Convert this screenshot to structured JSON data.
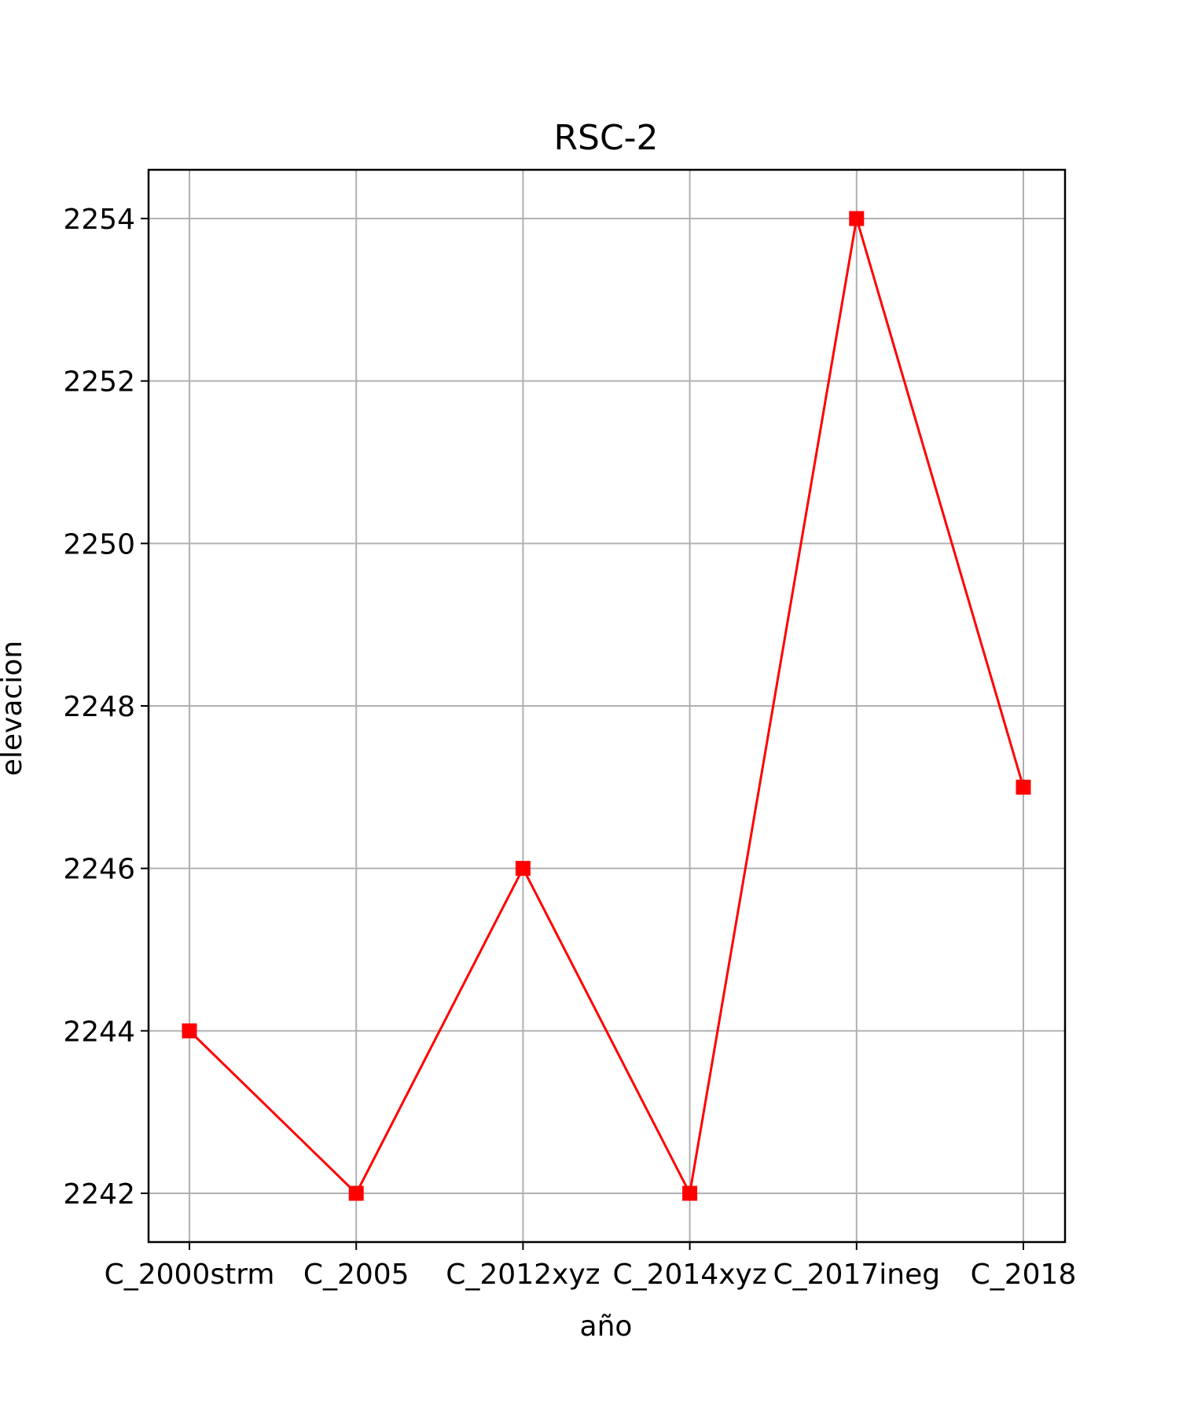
{
  "chart_data": {
    "type": "line",
    "title": "RSC-2",
    "xlabel": "año",
    "ylabel": "elevacion",
    "categories": [
      "C_2000strm",
      "C_2005",
      "C_2012xyz",
      "C_2014xyz",
      "C_2017ineg",
      "C_2018"
    ],
    "series": [
      {
        "values": [
          2244,
          2242,
          2246,
          2242,
          2254,
          2247
        ],
        "color": "#ff0000",
        "marker": "square"
      }
    ],
    "yticks": [
      2242,
      2244,
      2246,
      2248,
      2250,
      2252,
      2254
    ],
    "ylim": [
      2241.4,
      2254.6
    ],
    "grid": true,
    "legend": "none"
  }
}
